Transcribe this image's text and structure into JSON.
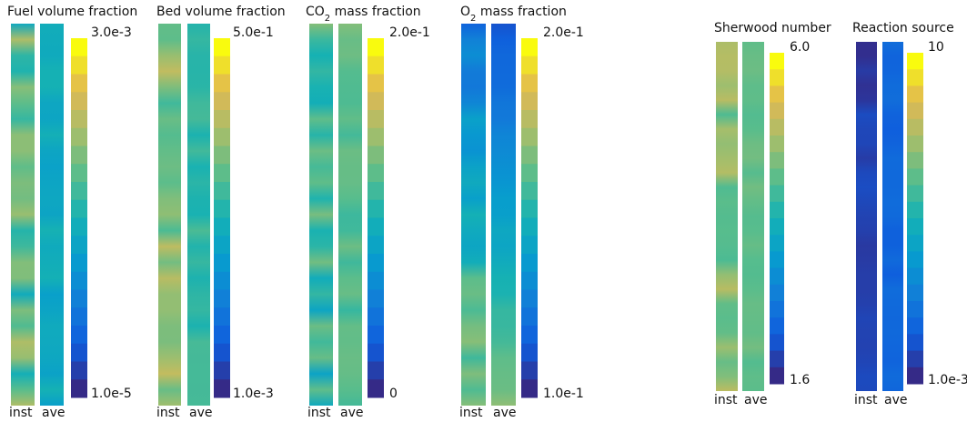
{
  "panels": [
    {
      "title": [
        {
          "text": "Fuel volume fraction"
        }
      ],
      "max": "3.0e-3",
      "min": "1.0e-5",
      "labels": [
        "inst",
        "ave"
      ]
    },
    {
      "title": [
        {
          "text": "Bed volume fraction"
        }
      ],
      "max": "5.0e-1",
      "min": "1.0e-3",
      "labels": [
        "inst",
        "ave"
      ]
    },
    {
      "title": [
        {
          "text": "CO"
        },
        {
          "text": "2",
          "sub": true
        },
        {
          "text": " mass fraction"
        }
      ],
      "max": "2.0e-1",
      "min": "0",
      "labels": [
        "inst",
        "ave"
      ]
    },
    {
      "title": [
        {
          "text": "O"
        },
        {
          "text": "2",
          "sub": true
        },
        {
          "text": " mass fraction"
        }
      ],
      "max": "2.0e-1",
      "min": "1.0e-1",
      "labels": [
        "inst",
        "ave"
      ]
    },
    {
      "title": [
        {
          "text": "Sherwood number"
        }
      ],
      "max": "6.0",
      "min": "1.6",
      "labels": [
        "inst",
        "ave"
      ]
    },
    {
      "title": [
        {
          "text": "Reaction source"
        }
      ],
      "max": "10",
      "min": "1.0e-3",
      "labels": [
        "inst",
        "ave"
      ]
    }
  ]
}
